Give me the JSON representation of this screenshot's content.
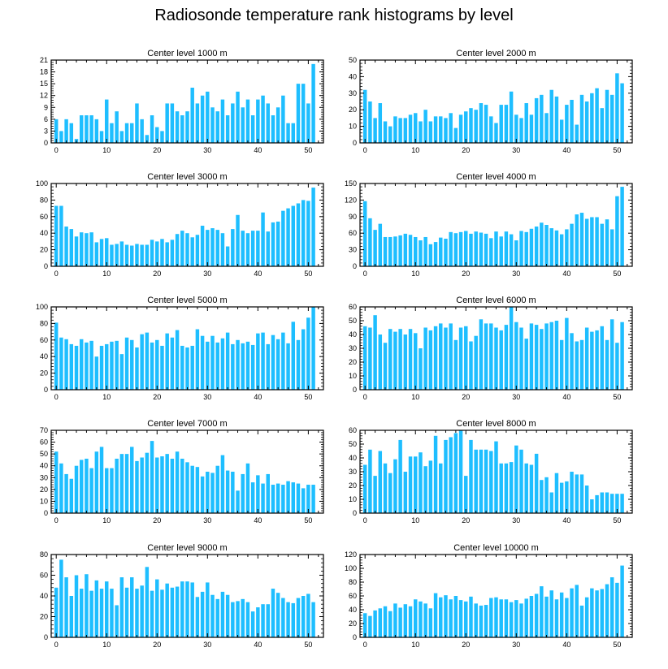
{
  "figure": {
    "title": "Radiosonde temperature rank histograms by level"
  },
  "colors": {
    "bar": "#1ebeff",
    "axis": "#000000"
  },
  "chart_data": [
    {
      "type": "bar",
      "title": "Center level 1000 m",
      "x": [
        0,
        1,
        2,
        3,
        4,
        5,
        6,
        7,
        8,
        9,
        10,
        11,
        12,
        13,
        14,
        15,
        16,
        17,
        18,
        19,
        20,
        21,
        22,
        23,
        24,
        25,
        26,
        27,
        28,
        29,
        30,
        31,
        32,
        33,
        34,
        35,
        36,
        37,
        38,
        39,
        40,
        41,
        42,
        43,
        44,
        45,
        46,
        47,
        48,
        49,
        50,
        51
      ],
      "values": [
        6,
        3,
        6,
        5,
        1,
        7,
        7,
        7,
        6,
        3,
        11,
        5,
        8,
        3,
        5,
        5,
        10,
        6,
        2,
        7,
        4,
        3,
        10,
        10,
        8,
        7,
        8,
        14,
        10,
        12,
        13,
        9,
        8,
        11,
        7,
        10,
        13,
        9,
        11,
        7,
        11,
        12,
        10,
        7,
        9,
        12,
        5,
        5,
        15,
        15,
        10,
        20
      ],
      "xlim": [
        -1,
        53
      ],
      "ylim": [
        0,
        21
      ],
      "xticks": [
        0,
        10,
        20,
        30,
        40,
        50
      ],
      "yticks": [
        0,
        3,
        6,
        9,
        12,
        15,
        18,
        21
      ]
    },
    {
      "type": "bar",
      "title": "Center level 2000 m",
      "x": [
        0,
        1,
        2,
        3,
        4,
        5,
        6,
        7,
        8,
        9,
        10,
        11,
        12,
        13,
        14,
        15,
        16,
        17,
        18,
        19,
        20,
        21,
        22,
        23,
        24,
        25,
        26,
        27,
        28,
        29,
        30,
        31,
        32,
        33,
        34,
        35,
        36,
        37,
        38,
        39,
        40,
        41,
        42,
        43,
        44,
        45,
        46,
        47,
        48,
        49,
        50,
        51
      ],
      "values": [
        32,
        25,
        15,
        24,
        13,
        10,
        16,
        15,
        15,
        17,
        18,
        13,
        20,
        13,
        16,
        16,
        15,
        18,
        9,
        17,
        19,
        21,
        20,
        24,
        23,
        16,
        12,
        23,
        23,
        31,
        17,
        15,
        24,
        17,
        27,
        29,
        18,
        32,
        28,
        14,
        23,
        26,
        11,
        29,
        25,
        30,
        33,
        21,
        32,
        29,
        42,
        36
      ],
      "xlim": [
        -1,
        53
      ],
      "ylim": [
        0,
        50
      ],
      "xticks": [
        0,
        10,
        20,
        30,
        40,
        50
      ],
      "yticks": [
        0,
        10,
        20,
        30,
        40,
        50
      ]
    },
    {
      "type": "bar",
      "title": "Center level 3000 m",
      "x": [
        0,
        1,
        2,
        3,
        4,
        5,
        6,
        7,
        8,
        9,
        10,
        11,
        12,
        13,
        14,
        15,
        16,
        17,
        18,
        19,
        20,
        21,
        22,
        23,
        24,
        25,
        26,
        27,
        28,
        29,
        30,
        31,
        32,
        33,
        34,
        35,
        36,
        37,
        38,
        39,
        40,
        41,
        42,
        43,
        44,
        45,
        46,
        47,
        48,
        49,
        50,
        51
      ],
      "values": [
        73,
        73,
        48,
        45,
        36,
        41,
        40,
        41,
        29,
        33,
        34,
        26,
        27,
        30,
        26,
        25,
        27,
        26,
        26,
        32,
        30,
        33,
        29,
        32,
        39,
        43,
        40,
        35,
        38,
        49,
        44,
        46,
        44,
        40,
        24,
        45,
        62,
        43,
        40,
        43,
        43,
        65,
        42,
        53,
        54,
        67,
        70,
        73,
        76,
        80,
        79,
        95
      ],
      "xlim": [
        -1,
        53
      ],
      "ylim": [
        0,
        100
      ],
      "xticks": [
        0,
        10,
        20,
        30,
        40,
        50
      ],
      "yticks": [
        0,
        20,
        40,
        60,
        80,
        100
      ]
    },
    {
      "type": "bar",
      "title": "Center level 4000 m",
      "x": [
        0,
        1,
        2,
        3,
        4,
        5,
        6,
        7,
        8,
        9,
        10,
        11,
        12,
        13,
        14,
        15,
        16,
        17,
        18,
        19,
        20,
        21,
        22,
        23,
        24,
        25,
        26,
        27,
        28,
        29,
        30,
        31,
        32,
        33,
        34,
        35,
        36,
        37,
        38,
        39,
        40,
        41,
        42,
        43,
        44,
        45,
        46,
        47,
        48,
        49,
        50,
        51
      ],
      "values": [
        118,
        87,
        66,
        77,
        53,
        53,
        54,
        56,
        59,
        57,
        53,
        47,
        53,
        40,
        44,
        52,
        50,
        62,
        60,
        62,
        64,
        59,
        63,
        61,
        59,
        51,
        63,
        54,
        63,
        58,
        47,
        64,
        62,
        68,
        72,
        79,
        75,
        69,
        65,
        58,
        67,
        77,
        94,
        97,
        86,
        89,
        89,
        77,
        85,
        67,
        127,
        144
      ],
      "xlim": [
        -1,
        53
      ],
      "ylim": [
        0,
        150
      ],
      "xticks": [
        0,
        10,
        20,
        30,
        40,
        50
      ],
      "yticks": [
        0,
        30,
        60,
        90,
        120,
        150
      ]
    },
    {
      "type": "bar",
      "title": "Center level 5000 m",
      "x": [
        0,
        1,
        2,
        3,
        4,
        5,
        6,
        7,
        8,
        9,
        10,
        11,
        12,
        13,
        14,
        15,
        16,
        17,
        18,
        19,
        20,
        21,
        22,
        23,
        24,
        25,
        26,
        27,
        28,
        29,
        30,
        31,
        32,
        33,
        34,
        35,
        36,
        37,
        38,
        39,
        40,
        41,
        42,
        43,
        44,
        45,
        46,
        47,
        48,
        49,
        50,
        51
      ],
      "values": [
        81,
        63,
        61,
        55,
        53,
        61,
        57,
        59,
        40,
        53,
        55,
        58,
        59,
        43,
        63,
        60,
        51,
        67,
        69,
        57,
        60,
        53,
        68,
        63,
        72,
        53,
        51,
        53,
        73,
        65,
        58,
        65,
        57,
        62,
        69,
        55,
        60,
        56,
        58,
        54,
        68,
        69,
        55,
        66,
        61,
        69,
        56,
        82,
        60,
        73,
        87,
        100
      ],
      "xlim": [
        -1,
        53
      ],
      "ylim": [
        0,
        100
      ],
      "xticks": [
        0,
        10,
        20,
        30,
        40,
        50
      ],
      "yticks": [
        0,
        20,
        40,
        60,
        80,
        100
      ]
    },
    {
      "type": "bar",
      "title": "Center level 6000 m",
      "x": [
        0,
        1,
        2,
        3,
        4,
        5,
        6,
        7,
        8,
        9,
        10,
        11,
        12,
        13,
        14,
        15,
        16,
        17,
        18,
        19,
        20,
        21,
        22,
        23,
        24,
        25,
        26,
        27,
        28,
        29,
        30,
        31,
        32,
        33,
        34,
        35,
        36,
        37,
        38,
        39,
        40,
        41,
        42,
        43,
        44,
        45,
        46,
        47,
        48,
        49,
        50,
        51
      ],
      "values": [
        46,
        45,
        54,
        40,
        34,
        44,
        42,
        44,
        40,
        44,
        41,
        30,
        45,
        43,
        46,
        48,
        45,
        48,
        36,
        45,
        46,
        35,
        39,
        51,
        48,
        48,
        45,
        43,
        47,
        60,
        49,
        45,
        37,
        48,
        47,
        44,
        48,
        49,
        50,
        36,
        52,
        41,
        35,
        36,
        45,
        42,
        43,
        46,
        36,
        51,
        34,
        49
      ],
      "xlim": [
        -1,
        53
      ],
      "ylim": [
        0,
        60
      ],
      "xticks": [
        0,
        10,
        20,
        30,
        40,
        50
      ],
      "yticks": [
        0,
        10,
        20,
        30,
        40,
        50,
        60
      ]
    },
    {
      "type": "bar",
      "title": "Center level 7000 m",
      "x": [
        0,
        1,
        2,
        3,
        4,
        5,
        6,
        7,
        8,
        9,
        10,
        11,
        12,
        13,
        14,
        15,
        16,
        17,
        18,
        19,
        20,
        21,
        22,
        23,
        24,
        25,
        26,
        27,
        28,
        29,
        30,
        31,
        32,
        33,
        34,
        35,
        36,
        37,
        38,
        39,
        40,
        41,
        42,
        43,
        44,
        45,
        46,
        47,
        48,
        49,
        50,
        51
      ],
      "values": [
        52,
        42,
        33,
        29,
        40,
        45,
        46,
        38,
        52,
        56,
        38,
        38,
        46,
        50,
        50,
        56,
        44,
        47,
        51,
        61,
        47,
        48,
        50,
        46,
        52,
        46,
        43,
        40,
        39,
        31,
        35,
        34,
        40,
        49,
        36,
        35,
        19,
        33,
        42,
        26,
        32,
        25,
        33,
        24,
        25,
        24,
        27,
        26,
        25,
        21,
        24,
        24
      ],
      "xlim": [
        -1,
        53
      ],
      "ylim": [
        0,
        70
      ],
      "xticks": [
        0,
        10,
        20,
        30,
        40,
        50
      ],
      "yticks": [
        0,
        10,
        20,
        30,
        40,
        50,
        60,
        70
      ]
    },
    {
      "type": "bar",
      "title": "Center level 8000 m",
      "x": [
        0,
        1,
        2,
        3,
        4,
        5,
        6,
        7,
        8,
        9,
        10,
        11,
        12,
        13,
        14,
        15,
        16,
        17,
        18,
        19,
        20,
        21,
        22,
        23,
        24,
        25,
        26,
        27,
        28,
        29,
        30,
        31,
        32,
        33,
        34,
        35,
        36,
        37,
        38,
        39,
        40,
        41,
        42,
        43,
        44,
        45,
        46,
        47,
        48,
        49,
        50,
        51
      ],
      "values": [
        35,
        46,
        27,
        45,
        36,
        29,
        39,
        53,
        30,
        41,
        41,
        44,
        34,
        38,
        56,
        36,
        53,
        55,
        58,
        60,
        27,
        53,
        46,
        46,
        46,
        45,
        52,
        36,
        36,
        37,
        49,
        46,
        36,
        35,
        43,
        24,
        26,
        15,
        29,
        22,
        23,
        30,
        28,
        28,
        20,
        10,
        13,
        15,
        15,
        14,
        14,
        14
      ],
      "xlim": [
        -1,
        53
      ],
      "ylim": [
        0,
        60
      ],
      "xticks": [
        0,
        10,
        20,
        30,
        40,
        50
      ],
      "yticks": [
        0,
        10,
        20,
        30,
        40,
        50,
        60
      ]
    },
    {
      "type": "bar",
      "title": "Center level 9000 m",
      "x": [
        0,
        1,
        2,
        3,
        4,
        5,
        6,
        7,
        8,
        9,
        10,
        11,
        12,
        13,
        14,
        15,
        16,
        17,
        18,
        19,
        20,
        21,
        22,
        23,
        24,
        25,
        26,
        27,
        28,
        29,
        30,
        31,
        32,
        33,
        34,
        35,
        36,
        37,
        38,
        39,
        40,
        41,
        42,
        43,
        44,
        45,
        46,
        47,
        48,
        49,
        50,
        51
      ],
      "values": [
        48,
        75,
        58,
        40,
        60,
        47,
        61,
        45,
        55,
        47,
        54,
        47,
        31,
        58,
        48,
        58,
        47,
        50,
        68,
        45,
        56,
        46,
        52,
        48,
        49,
        54,
        54,
        53,
        39,
        44,
        53,
        41,
        37,
        44,
        41,
        34,
        35,
        37,
        34,
        25,
        29,
        32,
        32,
        47,
        43,
        38,
        34,
        33,
        38,
        40,
        42,
        34
      ],
      "xlim": [
        -1,
        53
      ],
      "ylim": [
        0,
        80
      ],
      "xticks": [
        0,
        10,
        20,
        30,
        40,
        50
      ],
      "yticks": [
        0,
        20,
        40,
        60,
        80
      ]
    },
    {
      "type": "bar",
      "title": "Center level 10000 m",
      "x": [
        0,
        1,
        2,
        3,
        4,
        5,
        6,
        7,
        8,
        9,
        10,
        11,
        12,
        13,
        14,
        15,
        16,
        17,
        18,
        19,
        20,
        21,
        22,
        23,
        24,
        25,
        26,
        27,
        28,
        29,
        30,
        31,
        32,
        33,
        34,
        35,
        36,
        37,
        38,
        39,
        40,
        41,
        42,
        43,
        44,
        45,
        46,
        47,
        48,
        49,
        50,
        51
      ],
      "values": [
        35,
        31,
        39,
        42,
        45,
        38,
        49,
        43,
        48,
        45,
        55,
        52,
        49,
        42,
        64,
        58,
        61,
        55,
        60,
        54,
        52,
        59,
        49,
        46,
        47,
        57,
        58,
        55,
        55,
        51,
        54,
        49,
        56,
        60,
        63,
        74,
        59,
        68,
        55,
        65,
        57,
        71,
        76,
        46,
        58,
        71,
        68,
        70,
        77,
        87,
        79,
        104
      ],
      "xlim": [
        -1,
        53
      ],
      "ylim": [
        0,
        120
      ],
      "xticks": [
        0,
        10,
        20,
        30,
        40,
        50
      ],
      "yticks": [
        0,
        20,
        40,
        60,
        80,
        100,
        120
      ]
    }
  ]
}
